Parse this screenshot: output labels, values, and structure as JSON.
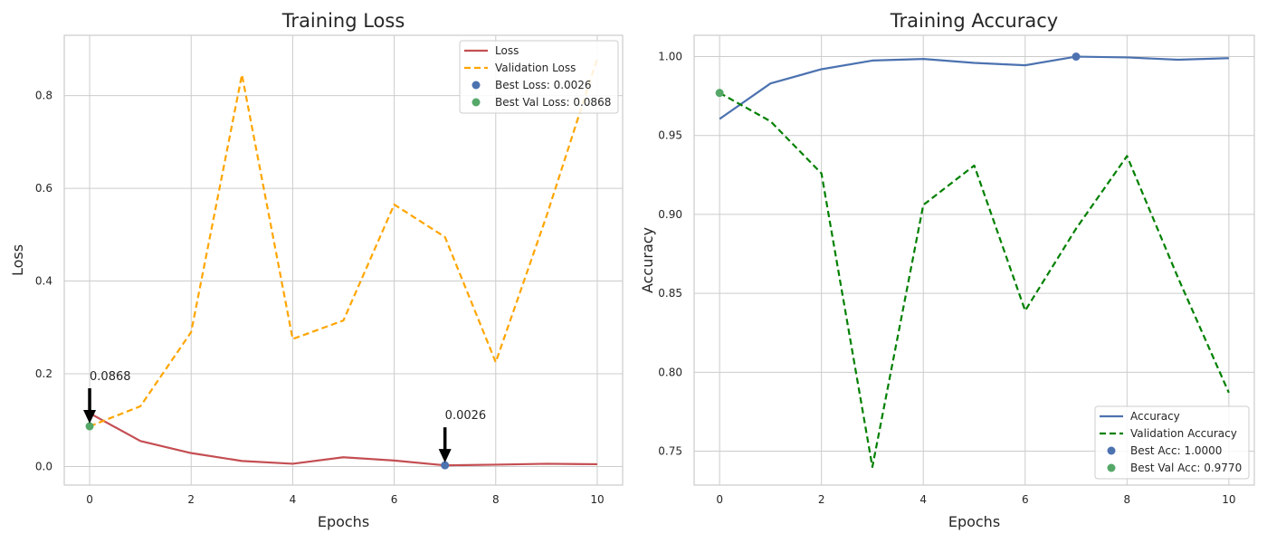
{
  "chart_data": [
    {
      "type": "line",
      "title": "Training Loss",
      "xlabel": "Epochs",
      "ylabel": "Loss",
      "xlim": [
        -0.5,
        10.5
      ],
      "ylim": [
        -0.04,
        0.93
      ],
      "xticks": [
        0,
        2,
        4,
        6,
        8,
        10
      ],
      "yticks": [
        0.0,
        0.2,
        0.4,
        0.6,
        0.8
      ],
      "ytick_labels": [
        "0.0",
        "0.2",
        "0.4",
        "0.6",
        "0.8"
      ],
      "grid": true,
      "legend_position": "top-right",
      "x": [
        0,
        1,
        2,
        3,
        4,
        5,
        6,
        7,
        8,
        9,
        10
      ],
      "series": [
        {
          "name": "Loss",
          "style": "solid",
          "color": "#c44e52",
          "values": [
            0.115,
            0.055,
            0.029,
            0.012,
            0.006,
            0.02,
            0.013,
            0.0026,
            0.004,
            0.006,
            0.005
          ]
        },
        {
          "name": "Validation Loss",
          "style": "dashed",
          "color": "#ffa500",
          "values": [
            0.0868,
            0.13,
            0.29,
            0.845,
            0.275,
            0.315,
            0.565,
            0.495,
            0.225,
            0.54,
            0.88
          ]
        }
      ],
      "markers": [
        {
          "name": "Best Loss: 0.0026",
          "x": 7,
          "y": 0.0026,
          "color": "#4c72b0"
        },
        {
          "name": "Best Val Loss: 0.0868",
          "x": 0,
          "y": 0.0868,
          "color": "#55a868"
        }
      ],
      "annotations": [
        {
          "text": "0.0026",
          "x": 7,
          "y": 0.0026
        },
        {
          "text": "0.0868",
          "x": 0,
          "y": 0.0868
        }
      ]
    },
    {
      "type": "line",
      "title": "Training Accuracy",
      "xlabel": "Epochs",
      "ylabel": "Accuracy",
      "xlim": [
        -0.5,
        10.5
      ],
      "ylim": [
        0.7285,
        1.0135
      ],
      "xticks": [
        0,
        2,
        4,
        6,
        8,
        10
      ],
      "yticks": [
        0.75,
        0.8,
        0.85,
        0.9,
        0.95,
        1.0
      ],
      "ytick_labels": [
        "0.75",
        "0.80",
        "0.85",
        "0.90",
        "0.95",
        "1.00"
      ],
      "grid": true,
      "legend_position": "bottom-right",
      "x": [
        0,
        1,
        2,
        3,
        4,
        5,
        6,
        7,
        8,
        9,
        10
      ],
      "series": [
        {
          "name": "Accuracy",
          "style": "solid",
          "color": "#4c72b0",
          "values": [
            0.9605,
            0.983,
            0.992,
            0.9975,
            0.9985,
            0.996,
            0.9945,
            1.0,
            0.9995,
            0.998,
            0.999
          ]
        },
        {
          "name": "Validation Accuracy",
          "style": "dashed",
          "color": "#008000",
          "values": [
            0.977,
            0.959,
            0.926,
            0.74,
            0.906,
            0.931,
            0.839,
            0.891,
            0.937,
            0.86,
            0.787
          ]
        }
      ],
      "markers": [
        {
          "name": "Best Acc: 1.0000",
          "x": 7,
          "y": 1.0,
          "color": "#4c72b0"
        },
        {
          "name": "Best Val Acc: 0.9770",
          "x": 0,
          "y": 0.977,
          "color": "#55a868"
        }
      ],
      "annotations": []
    }
  ]
}
